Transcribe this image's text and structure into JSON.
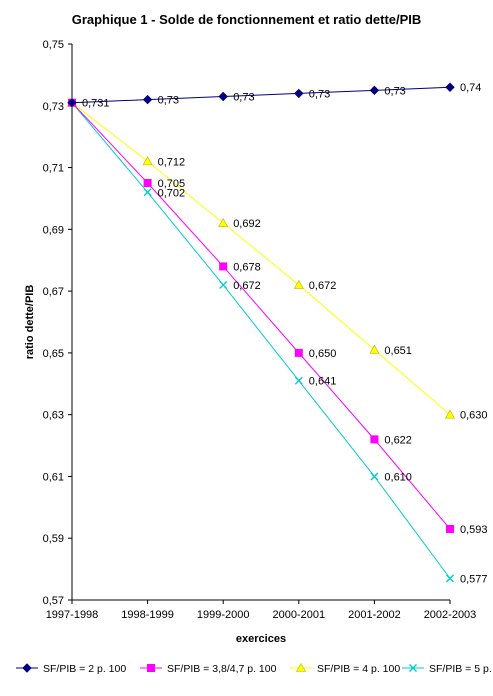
{
  "chart_data": {
    "type": "line",
    "title": "Graphique 1 - Solde de fonctionnement et ratio dette/PIB",
    "xlabel": "exercices",
    "ylabel": "ratio dette/PIB",
    "categories": [
      "1997-1998",
      "1998-1999",
      "1999-2000",
      "2000-2001",
      "2001-2002",
      "2002-2003"
    ],
    "ylim": [
      0.57,
      0.75
    ],
    "yticks": [
      "0,57",
      "0,59",
      "0,61",
      "0,63",
      "0,65",
      "0,67",
      "0,69",
      "0,71",
      "0,73",
      "0,75"
    ],
    "ytick_values": [
      0.57,
      0.59,
      0.61,
      0.63,
      0.65,
      0.67,
      0.69,
      0.71,
      0.73,
      0.75
    ],
    "grid": false,
    "legend_position": "bottom",
    "series": [
      {
        "name": "SF/PIB = 2 p. 100",
        "color": "#000080",
        "marker": "diamond",
        "values": [
          0.731,
          0.732,
          0.733,
          0.734,
          0.735,
          0.736
        ],
        "labels": [
          "0,731",
          "0,73",
          "0,73",
          "0,73",
          "0,73",
          "0,74"
        ]
      },
      {
        "name": "SF/PIB = 3,8/4,7 p. 100",
        "color": "#ff00ff",
        "marker": "square",
        "values": [
          0.731,
          0.705,
          0.678,
          0.65,
          0.622,
          0.593
        ],
        "labels": [
          "",
          "0,705",
          "0,678",
          "0,650",
          "0,622",
          "0,593"
        ]
      },
      {
        "name": "SF/PIB = 4 p. 100",
        "color": "#ffff00",
        "marker": "triangle",
        "values": [
          0.731,
          0.712,
          0.692,
          0.672,
          0.651,
          0.63
        ],
        "labels": [
          "",
          "0,712",
          "0,692",
          "0,672",
          "0,651",
          "0,630"
        ]
      },
      {
        "name": "SF/PIB = 5 p.",
        "color": "#00cccc",
        "marker": "x",
        "values": [
          0.731,
          0.702,
          0.672,
          0.641,
          0.61,
          0.577
        ],
        "labels": [
          "",
          "0,702",
          "0,672",
          "0,641",
          "0,610",
          "0,577"
        ]
      }
    ]
  }
}
